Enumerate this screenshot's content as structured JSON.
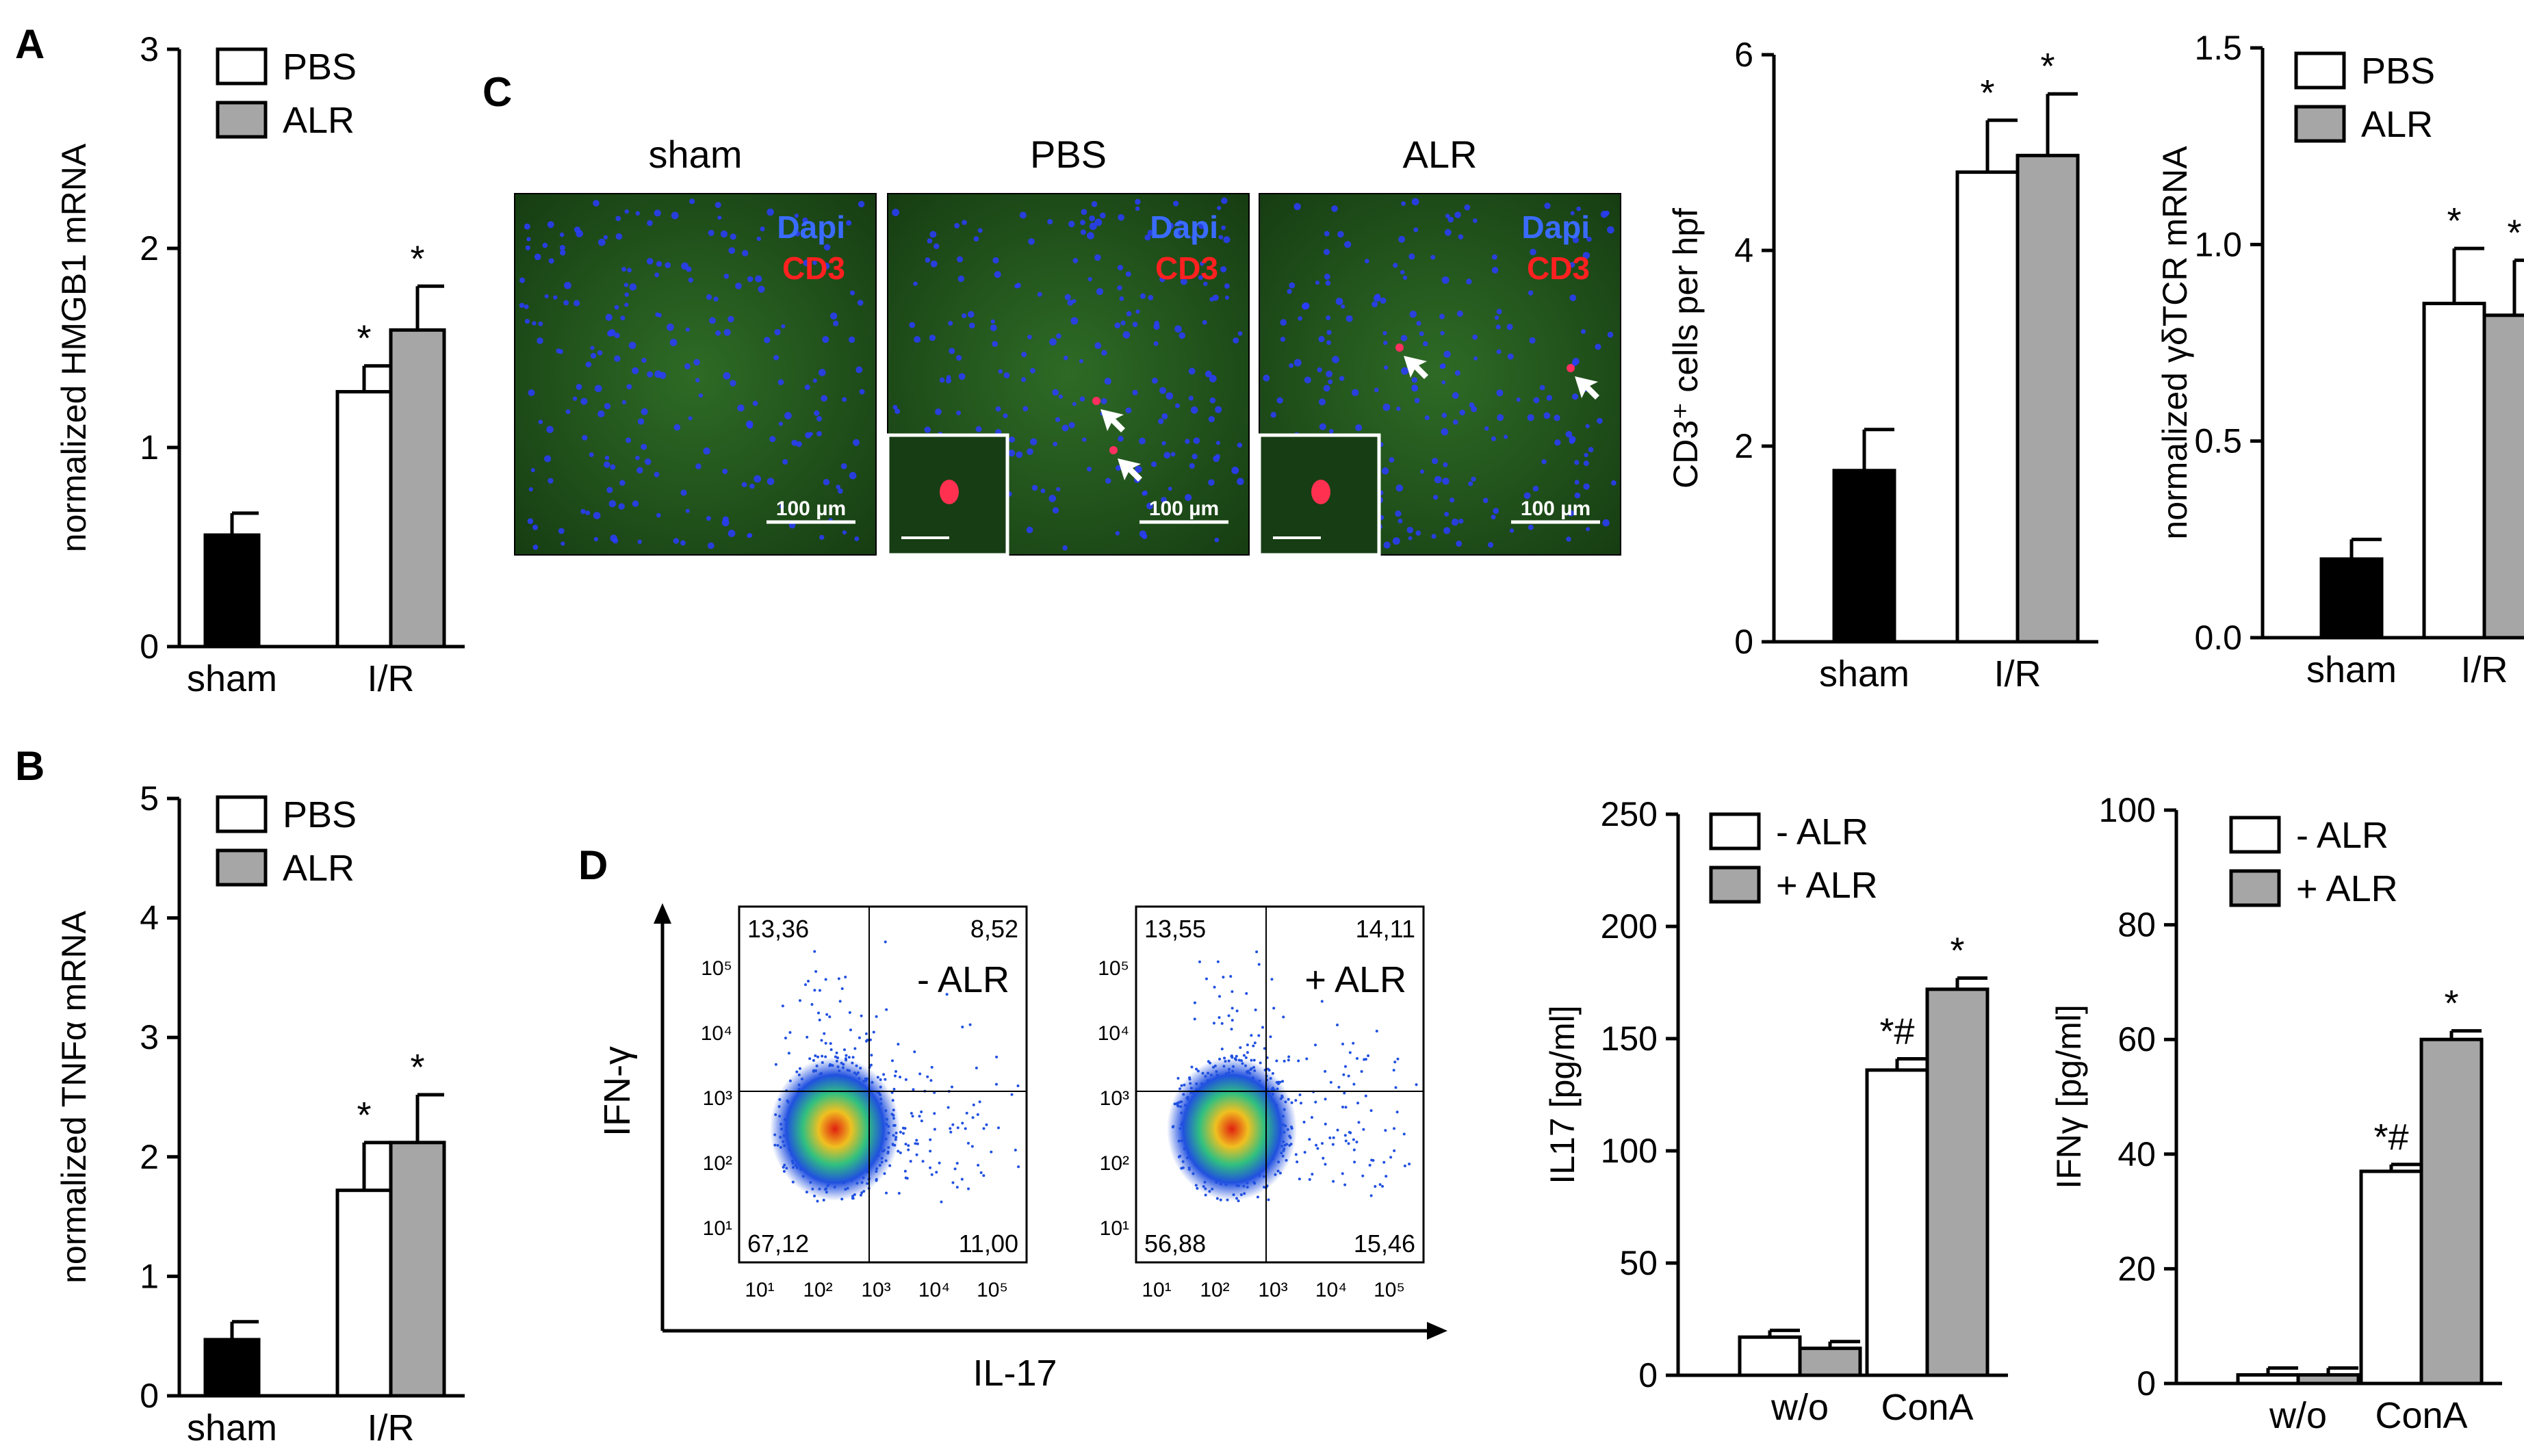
{
  "panels": {
    "A": {
      "label": "A"
    },
    "B": {
      "label": "B"
    },
    "C": {
      "label": "C"
    },
    "D": {
      "label": "D"
    }
  },
  "charts": {
    "hmgb1": {
      "type": "bar",
      "ylabel": "normalized HMGB1  mRNA",
      "ylim": [
        0,
        3
      ],
      "yticks": [
        "0",
        "1",
        "2",
        "3"
      ],
      "group_labels": [
        "sham",
        "I/R"
      ],
      "legend": [
        "PBS",
        "ALR"
      ],
      "bars": [
        {
          "group": "sham",
          "series": "sham",
          "value": 0.56,
          "err": 0.11,
          "color": "#000000",
          "star": ""
        },
        {
          "group": "I/R",
          "series": "PBS",
          "value": 1.28,
          "err": 0.13,
          "color": "#ffffff",
          "star": "*"
        },
        {
          "group": "I/R",
          "series": "ALR",
          "value": 1.59,
          "err": 0.22,
          "color": "#a6a6a6",
          "star": "*"
        }
      ]
    },
    "tnfa": {
      "type": "bar",
      "ylabel": "normalized TNFα  mRNA",
      "ylim": [
        0,
        5
      ],
      "yticks": [
        "0",
        "1",
        "2",
        "3",
        "4",
        "5"
      ],
      "group_labels": [
        "sham",
        "I/R"
      ],
      "legend": [
        "PBS",
        "ALR"
      ],
      "bars": [
        {
          "group": "sham",
          "series": "sham",
          "value": 0.47,
          "err": 0.15,
          "color": "#000000",
          "star": ""
        },
        {
          "group": "I/R",
          "series": "PBS",
          "value": 1.72,
          "err": 0.4,
          "color": "#ffffff",
          "star": "*"
        },
        {
          "group": "I/R",
          "series": "ALR",
          "value": 2.12,
          "err": 0.4,
          "color": "#a6a6a6",
          "star": "*"
        }
      ]
    },
    "cd3": {
      "type": "bar",
      "ylabel": "CD3⁺ cells per hpf",
      "ylim": [
        0,
        6
      ],
      "yticks": [
        "0",
        "2",
        "4",
        "6"
      ],
      "group_labels": [
        "sham",
        "I/R"
      ],
      "legend": [],
      "bars": [
        {
          "group": "sham",
          "series": "sham",
          "value": 1.75,
          "err": 0.42,
          "color": "#000000",
          "star": ""
        },
        {
          "group": "I/R",
          "series": "PBS",
          "value": 4.8,
          "err": 0.53,
          "color": "#ffffff",
          "star": "*"
        },
        {
          "group": "I/R",
          "series": "ALR",
          "value": 4.97,
          "err": 0.63,
          "color": "#a6a6a6",
          "star": "*"
        }
      ]
    },
    "gdtcr": {
      "type": "bar",
      "ylabel": "normalized γδTCR  mRNA",
      "ylim": [
        0,
        1.5
      ],
      "yticks": [
        "0.0",
        "0.5",
        "1.0",
        "1.5"
      ],
      "group_labels": [
        "sham",
        "I/R"
      ],
      "legend": [
        "PBS",
        "ALR"
      ],
      "bars": [
        {
          "group": "sham",
          "series": "sham",
          "value": 0.2,
          "err": 0.05,
          "color": "#000000",
          "star": ""
        },
        {
          "group": "I/R",
          "series": "PBS",
          "value": 0.85,
          "err": 0.14,
          "color": "#ffffff",
          "star": "*"
        },
        {
          "group": "I/R",
          "series": "ALR",
          "value": 0.82,
          "err": 0.14,
          "color": "#a6a6a6",
          "star": "*"
        }
      ]
    },
    "il17": {
      "type": "bar",
      "ylabel": "IL17  [pg/ml]",
      "ylim": [
        0,
        250
      ],
      "yticks": [
        "0",
        "50",
        "100",
        "150",
        "200",
        "250"
      ],
      "group_labels": [
        "w/o",
        "ConA"
      ],
      "legend": [
        "- ALR",
        "+ ALR"
      ],
      "bars": [
        {
          "group": "w/o",
          "series": "- ALR",
          "value": 17,
          "err": 3,
          "color": "#ffffff",
          "star": ""
        },
        {
          "group": "w/o",
          "series": "+ ALR",
          "value": 12,
          "err": 3,
          "color": "#a6a6a6",
          "star": ""
        },
        {
          "group": "ConA",
          "series": "- ALR",
          "value": 136,
          "err": 5,
          "color": "#ffffff",
          "star": "*#"
        },
        {
          "group": "ConA",
          "series": "+ ALR",
          "value": 172,
          "err": 5,
          "color": "#a6a6a6",
          "star": "*"
        }
      ]
    },
    "ifng": {
      "type": "bar",
      "ylabel": "IFNγ  [pg/ml]",
      "ylim": [
        0,
        100
      ],
      "yticks": [
        "0",
        "20",
        "40",
        "60",
        "80",
        "100"
      ],
      "group_labels": [
        "w/o",
        "ConA"
      ],
      "legend": [
        "- ALR",
        "+ ALR"
      ],
      "bars": [
        {
          "group": "w/o",
          "series": "- ALR",
          "value": 1.5,
          "err": 1.2,
          "color": "#ffffff",
          "star": ""
        },
        {
          "group": "w/o",
          "series": "+ ALR",
          "value": 1.5,
          "err": 1.2,
          "color": "#a6a6a6",
          "star": ""
        },
        {
          "group": "ConA",
          "series": "- ALR",
          "value": 37,
          "err": 1.2,
          "color": "#ffffff",
          "star": "*#"
        },
        {
          "group": "ConA",
          "series": "+ ALR",
          "value": 60,
          "err": 1.5,
          "color": "#a6a6a6",
          "star": "*"
        }
      ]
    }
  },
  "microscopy": {
    "images": [
      {
        "title": "sham",
        "dapi": "Dapi",
        "cd3": "CD3",
        "scale": "100 µm",
        "inset": false
      },
      {
        "title": "PBS",
        "dapi": "Dapi",
        "cd3": "CD3",
        "scale": "100 µm",
        "inset": true
      },
      {
        "title": "ALR",
        "dapi": "Dapi",
        "cd3": "CD3",
        "scale": "100 µm",
        "inset": true
      }
    ]
  },
  "flow": {
    "x_axis_label": "IL-17",
    "y_axis_label": "IFN-γ",
    "tick_labels": [
      "10¹",
      "10²",
      "10³",
      "10⁴",
      "10⁵"
    ],
    "plots": [
      {
        "condition": "- ALR",
        "quadrants": {
          "ul": "13,36",
          "ur": "8,52",
          "ll": "67,12",
          "lr": "11,00"
        }
      },
      {
        "condition": "+ ALR",
        "quadrants": {
          "ul": "13,55",
          "ur": "14,11",
          "ll": "56,88",
          "lr": "15,46"
        }
      }
    ]
  }
}
